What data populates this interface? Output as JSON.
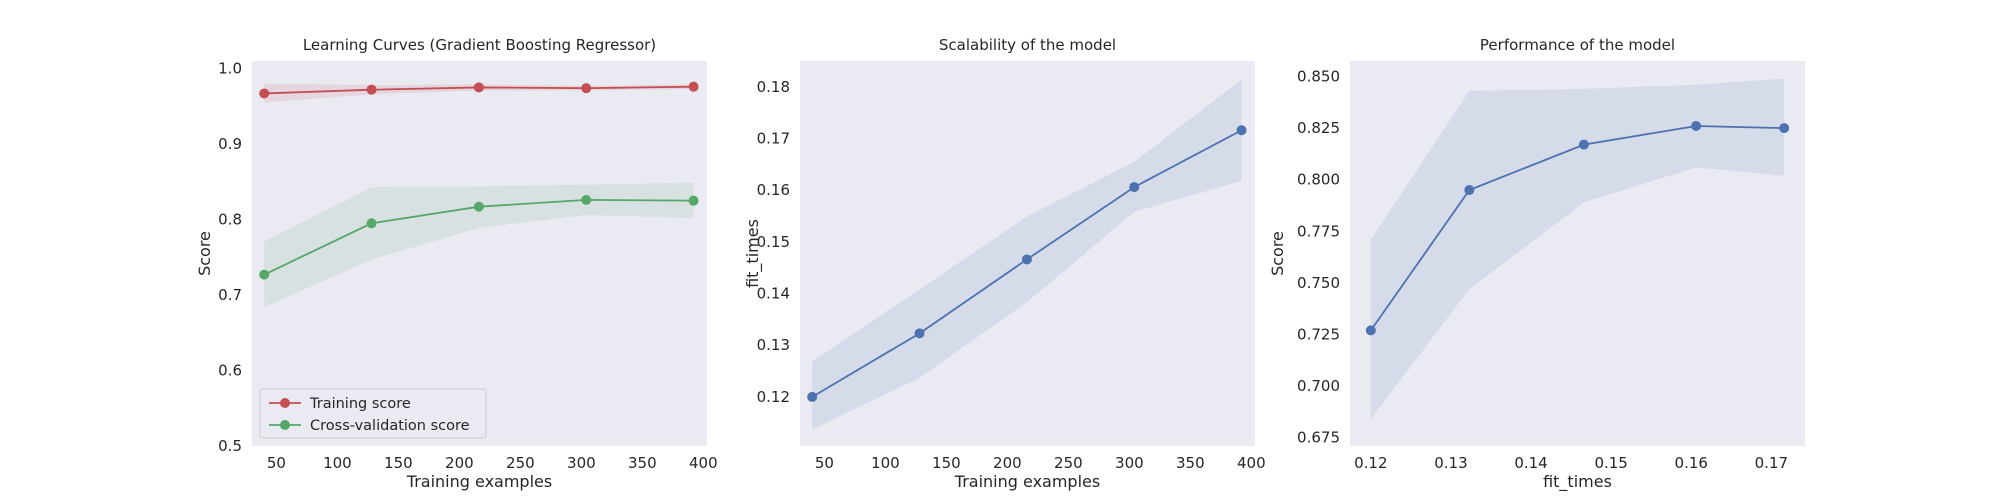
{
  "chart_data": [
    {
      "type": "line",
      "title": "Learning Curves (Gradient Boosting Regressor)",
      "xlabel": "Training examples",
      "ylabel": "Score",
      "xlim": [
        30,
        403
      ],
      "ylim": [
        0.5,
        1.01
      ],
      "xticks": [
        50,
        100,
        150,
        200,
        250,
        300,
        350,
        400
      ],
      "xtick_labels": [
        "50",
        "100",
        "150",
        "200",
        "250",
        "300",
        "350",
        "400"
      ],
      "yticks": [
        0.5,
        0.6,
        0.7,
        0.8,
        0.9,
        1.0
      ],
      "ytick_labels": [
        "0.5",
        "0.6",
        "0.7",
        "0.8",
        "0.9",
        "1.0"
      ],
      "grid": false,
      "legend": "lower-left",
      "x": [
        40,
        128,
        216,
        304,
        392
      ],
      "series": [
        {
          "name": "Training score",
          "color": "#c44e52",
          "values": [
            0.967,
            0.972,
            0.975,
            0.974,
            0.976
          ],
          "band_low": [
            0.955,
            0.966,
            0.971,
            0.971,
            0.973
          ],
          "band_high": [
            0.98,
            0.978,
            0.979,
            0.977,
            0.979
          ]
        },
        {
          "name": "Cross-validation score",
          "color": "#55a868",
          "values": [
            0.727,
            0.795,
            0.817,
            0.826,
            0.825
          ],
          "band_low": [
            0.684,
            0.747,
            0.789,
            0.806,
            0.802
          ],
          "band_high": [
            0.771,
            0.843,
            0.844,
            0.846,
            0.849
          ]
        }
      ]
    },
    {
      "type": "line",
      "title": "Scalability of the model",
      "xlabel": "Training examples",
      "ylabel": "fit_times",
      "xlim": [
        30,
        403
      ],
      "ylim": [
        0.1105,
        0.185
      ],
      "xticks": [
        50,
        100,
        150,
        200,
        250,
        300,
        350,
        400
      ],
      "xtick_labels": [
        "50",
        "100",
        "150",
        "200",
        "250",
        "300",
        "350",
        "400"
      ],
      "yticks": [
        0.12,
        0.13,
        0.14,
        0.15,
        0.16,
        0.17,
        0.18
      ],
      "ytick_labels": [
        "0.12",
        "0.13",
        "0.14",
        "0.15",
        "0.16",
        "0.17",
        "0.18"
      ],
      "grid": false,
      "x": [
        40,
        128,
        216,
        304,
        392
      ],
      "series": [
        {
          "color": "#4c72b0",
          "values": [
            0.12,
            0.1323,
            0.1466,
            0.1606,
            0.1716
          ],
          "band_low": [
            0.1137,
            0.1237,
            0.1383,
            0.1558,
            0.1618
          ],
          "band_high": [
            0.1268,
            0.1408,
            0.1549,
            0.1655,
            0.1814
          ]
        }
      ]
    },
    {
      "type": "line",
      "title": "Performance of the model",
      "xlabel": "fit_times",
      "ylabel": "Score",
      "xlim": [
        0.1174,
        0.1742
      ],
      "ylim": [
        0.671,
        0.8575
      ],
      "xticks": [
        0.12,
        0.13,
        0.14,
        0.15,
        0.16,
        0.17
      ],
      "xtick_labels": [
        "0.12",
        "0.13",
        "0.14",
        "0.15",
        "0.16",
        "0.17"
      ],
      "yticks": [
        0.675,
        0.7,
        0.725,
        0.75,
        0.775,
        0.8,
        0.825,
        0.85
      ],
      "ytick_labels": [
        "0.675",
        "0.700",
        "0.725",
        "0.750",
        "0.775",
        "0.800",
        "0.825",
        "0.850"
      ],
      "grid": false,
      "x": [
        0.12,
        0.1323,
        0.1466,
        0.1606,
        0.1716
      ],
      "series": [
        {
          "color": "#4c72b0",
          "values": [
            0.727,
            0.795,
            0.817,
            0.826,
            0.825
          ],
          "band_low": [
            0.684,
            0.747,
            0.789,
            0.806,
            0.802
          ],
          "band_high": [
            0.771,
            0.843,
            0.844,
            0.846,
            0.849
          ]
        }
      ]
    }
  ]
}
